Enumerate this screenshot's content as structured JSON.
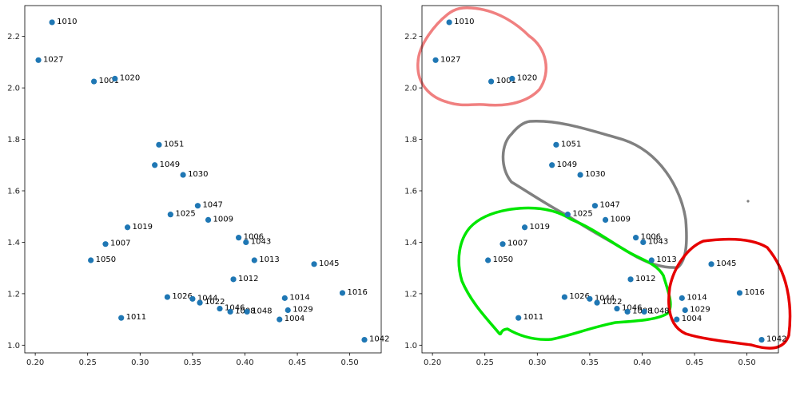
{
  "chart_data": [
    {
      "type": "scatter",
      "title": "",
      "xlabel": "",
      "ylabel": "",
      "xlim": [
        0.19,
        0.53
      ],
      "ylim": [
        0.97,
        2.32
      ],
      "xticks": [
        "0.20",
        "0.25",
        "0.30",
        "0.35",
        "0.40",
        "0.45",
        "0.50"
      ],
      "yticks": [
        "1.0",
        "1.2",
        "1.4",
        "1.6",
        "1.8",
        "2.0",
        "2.2"
      ],
      "grid": false,
      "marker_color": "#1f77b4",
      "points": [
        {
          "label": "1010",
          "x": 0.216,
          "y": 2.255
        },
        {
          "label": "1027",
          "x": 0.203,
          "y": 2.108
        },
        {
          "label": "1001",
          "x": 0.256,
          "y": 2.025
        },
        {
          "label": "1020",
          "x": 0.276,
          "y": 2.036
        },
        {
          "label": "1051",
          "x": 0.318,
          "y": 1.779
        },
        {
          "label": "1049",
          "x": 0.314,
          "y": 1.7
        },
        {
          "label": "1030",
          "x": 0.341,
          "y": 1.662
        },
        {
          "label": "1047",
          "x": 0.355,
          "y": 1.542
        },
        {
          "label": "1025",
          "x": 0.329,
          "y": 1.508
        },
        {
          "label": "1009",
          "x": 0.365,
          "y": 1.487
        },
        {
          "label": "1019",
          "x": 0.288,
          "y": 1.458
        },
        {
          "label": "1006",
          "x": 0.394,
          "y": 1.418
        },
        {
          "label": "1043",
          "x": 0.401,
          "y": 1.4
        },
        {
          "label": "1007",
          "x": 0.267,
          "y": 1.393
        },
        {
          "label": "1050",
          "x": 0.253,
          "y": 1.33
        },
        {
          "label": "1013",
          "x": 0.409,
          "y": 1.33
        },
        {
          "label": "1045",
          "x": 0.466,
          "y": 1.315
        },
        {
          "label": "1012",
          "x": 0.389,
          "y": 1.256
        },
        {
          "label": "1016",
          "x": 0.493,
          "y": 1.203
        },
        {
          "label": "1026",
          "x": 0.326,
          "y": 1.187
        },
        {
          "label": "1044",
          "x": 0.35,
          "y": 1.18
        },
        {
          "label": "1014",
          "x": 0.438,
          "y": 1.183
        },
        {
          "label": "1022",
          "x": 0.357,
          "y": 1.165
        },
        {
          "label": "1046",
          "x": 0.376,
          "y": 1.142
        },
        {
          "label": "1029",
          "x": 0.441,
          "y": 1.136
        },
        {
          "label": "1008",
          "x": 0.386,
          "y": 1.13
        },
        {
          "label": "1048",
          "x": 0.402,
          "y": 1.13
        },
        {
          "label": "1011",
          "x": 0.282,
          "y": 1.106
        },
        {
          "label": "1004",
          "x": 0.433,
          "y": 1.1
        },
        {
          "label": "1042",
          "x": 0.514,
          "y": 1.021
        }
      ]
    },
    {
      "type": "scatter",
      "title": "",
      "xlabel": "",
      "ylabel": "",
      "xlim": [
        0.19,
        0.53
      ],
      "ylim": [
        0.97,
        2.32
      ],
      "xticks": [
        "0.20",
        "0.25",
        "0.30",
        "0.35",
        "0.40",
        "0.45",
        "0.50"
      ],
      "yticks": [
        "1.0",
        "1.2",
        "1.4",
        "1.6",
        "1.8",
        "2.0",
        "2.2"
      ],
      "grid": false,
      "marker_color": "#1f77b4",
      "points": "same as chart 1",
      "cluster_outlines": [
        {
          "color": "#f08080",
          "members": [
            "1010",
            "1027",
            "1001",
            "1020"
          ]
        },
        {
          "color": "#808080",
          "members": [
            "1051",
            "1049",
            "1030",
            "1047",
            "1025",
            "1009",
            "1006",
            "1043",
            "1013"
          ]
        },
        {
          "color": "#00e600",
          "members": [
            "1019",
            "1007",
            "1050",
            "1012",
            "1026",
            "1044",
            "1022",
            "1046",
            "1008",
            "1048",
            "1011"
          ]
        },
        {
          "color": "#e60000",
          "members": [
            "1045",
            "1016",
            "1014",
            "1029",
            "1004",
            "1042"
          ]
        }
      ]
    }
  ]
}
